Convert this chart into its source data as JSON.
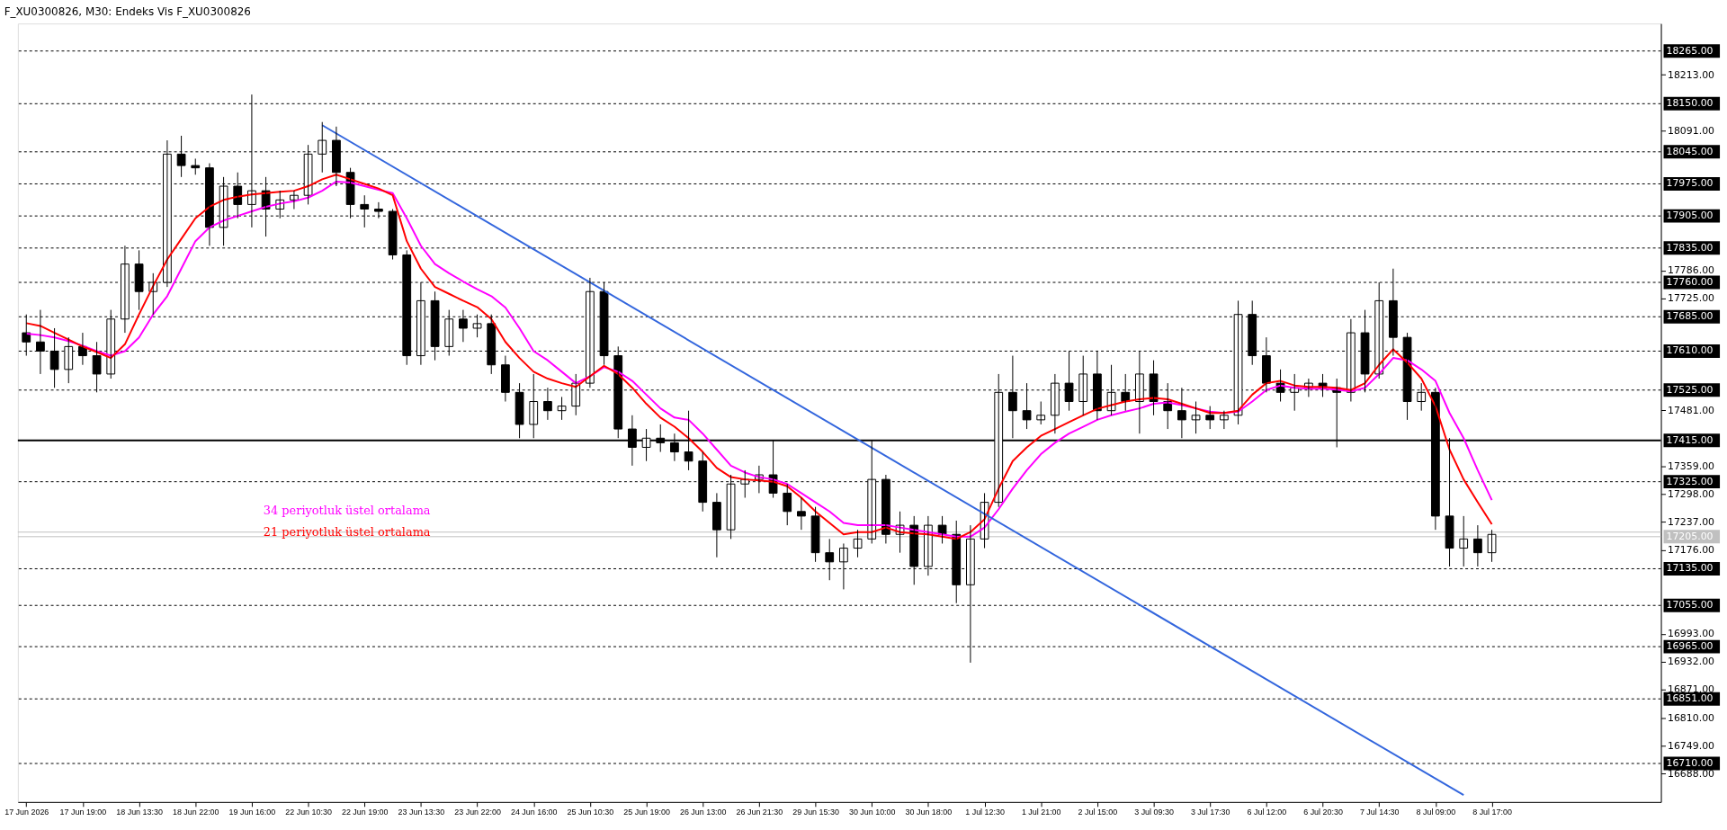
{
  "chart_data": {
    "type": "candlestick",
    "title": "F_XU0300826, M30:  Endeks Vis F_XU0300826",
    "categories": [
      "17 Jun 2026",
      null,
      null,
      null,
      "17 Jun 19:00",
      null,
      null,
      null,
      "18 Jun 13:30",
      null,
      null,
      null,
      "18 Jun 22:00",
      null,
      null,
      null,
      "19 Jun 16:00",
      null,
      null,
      null,
      "22 Jun 10:30",
      null,
      null,
      null,
      "22 Jun 19:00",
      null,
      null,
      null,
      "23 Jun 13:30",
      null,
      null,
      null,
      "23 Jun 22:00",
      null,
      null,
      null,
      "24 Jun 16:00",
      null,
      null,
      null,
      "25 Jun 10:30",
      null,
      null,
      null,
      "25 Jun 19:00",
      null,
      null,
      null,
      "26 Jun 13:00",
      null,
      null,
      null,
      "26 Jun 21:30",
      null,
      null,
      null,
      "29 Jun 15:30",
      null,
      null,
      null,
      "30 Jun 10:00",
      null,
      null,
      null,
      "30 Jun 18:00",
      null,
      null,
      null,
      "1 Jul 12:30",
      null,
      null,
      null,
      "1 Jul 21:00",
      null,
      null,
      null,
      "2 Jul 15:00",
      null,
      null,
      null,
      "3 Jul 09:30",
      null,
      null,
      null,
      "3 Jul 17:30",
      null,
      null,
      null,
      "6 Jul 12:00",
      null,
      null,
      null,
      "6 Jul 20:30",
      null,
      null,
      null,
      "7 Jul 14:30",
      null,
      null,
      null,
      "8 Jul 09:00",
      null,
      null,
      null,
      "8 Jul 17:00"
    ],
    "ohlc": [
      [
        17650,
        17690,
        17600,
        17630
      ],
      [
        17630,
        17700,
        17560,
        17610
      ],
      [
        17610,
        17660,
        17530,
        17570
      ],
      [
        17570,
        17640,
        17540,
        17620
      ],
      [
        17620,
        17650,
        17580,
        17600
      ],
      [
        17600,
        17630,
        17520,
        17560
      ],
      [
        17560,
        17700,
        17550,
        17680
      ],
      [
        17680,
        17840,
        17650,
        17800
      ],
      [
        17800,
        17830,
        17700,
        17740
      ],
      [
        17740,
        17780,
        17690,
        17760
      ],
      [
        17760,
        18070,
        17750,
        18040
      ],
      [
        18040,
        18080,
        17990,
        18015
      ],
      [
        18015,
        18030,
        17995,
        18010
      ],
      [
        18010,
        18020,
        17840,
        17880
      ],
      [
        17880,
        17990,
        17840,
        17970
      ],
      [
        17970,
        18000,
        17900,
        17930
      ],
      [
        17930,
        18170,
        17880,
        17960
      ],
      [
        17960,
        17990,
        17860,
        17920
      ],
      [
        17920,
        17960,
        17900,
        17940
      ],
      [
        17940,
        17960,
        17920,
        17950
      ],
      [
        17950,
        18060,
        17930,
        18040
      ],
      [
        18040,
        18110,
        18000,
        18070
      ],
      [
        18070,
        18100,
        17970,
        18000
      ],
      [
        18000,
        18010,
        17900,
        17930
      ],
      [
        17930,
        17950,
        17880,
        17920
      ],
      [
        17920,
        17935,
        17900,
        17915
      ],
      [
        17915,
        17920,
        17810,
        17820
      ],
      [
        17820,
        17830,
        17580,
        17600
      ],
      [
        17600,
        17760,
        17580,
        17720
      ],
      [
        17720,
        17740,
        17590,
        17620
      ],
      [
        17620,
        17700,
        17600,
        17680
      ],
      [
        17680,
        17700,
        17630,
        17660
      ],
      [
        17660,
        17690,
        17640,
        17670
      ],
      [
        17670,
        17690,
        17560,
        17580
      ],
      [
        17580,
        17600,
        17500,
        17520
      ],
      [
        17520,
        17540,
        17420,
        17450
      ],
      [
        17450,
        17560,
        17420,
        17500
      ],
      [
        17500,
        17530,
        17460,
        17480
      ],
      [
        17480,
        17510,
        17460,
        17490
      ],
      [
        17490,
        17560,
        17470,
        17540
      ],
      [
        17540,
        17770,
        17530,
        17740
      ],
      [
        17740,
        17760,
        17580,
        17600
      ],
      [
        17600,
        17620,
        17420,
        17440
      ],
      [
        17440,
        17470,
        17360,
        17400
      ],
      [
        17400,
        17440,
        17370,
        17420
      ],
      [
        17420,
        17450,
        17390,
        17410
      ],
      [
        17410,
        17430,
        17370,
        17390
      ],
      [
        17390,
        17480,
        17350,
        17370
      ],
      [
        17370,
        17390,
        17260,
        17280
      ],
      [
        17280,
        17300,
        17160,
        17220
      ],
      [
        17220,
        17340,
        17200,
        17320
      ],
      [
        17320,
        17350,
        17290,
        17330
      ],
      [
        17330,
        17360,
        17300,
        17340
      ],
      [
        17340,
        17415,
        17290,
        17300
      ],
      [
        17300,
        17320,
        17230,
        17260
      ],
      [
        17260,
        17290,
        17220,
        17250
      ],
      [
        17250,
        17270,
        17150,
        17170
      ],
      [
        17170,
        17200,
        17110,
        17150
      ],
      [
        17150,
        17190,
        17090,
        17180
      ],
      [
        17180,
        17220,
        17160,
        17200
      ],
      [
        17200,
        17415,
        17190,
        17330
      ],
      [
        17330,
        17340,
        17190,
        17210
      ],
      [
        17210,
        17260,
        17170,
        17230
      ],
      [
        17230,
        17250,
        17100,
        17140
      ],
      [
        17140,
        17250,
        17120,
        17230
      ],
      [
        17230,
        17250,
        17190,
        17210
      ],
      [
        17210,
        17240,
        17060,
        17100
      ],
      [
        17100,
        17230,
        16930,
        17200
      ],
      [
        17200,
        17300,
        17180,
        17280
      ],
      [
        17280,
        17560,
        17270,
        17520
      ],
      [
        17520,
        17600,
        17420,
        17480
      ],
      [
        17480,
        17540,
        17440,
        17460
      ],
      [
        17460,
        17500,
        17450,
        17470
      ],
      [
        17470,
        17560,
        17430,
        17540
      ],
      [
        17540,
        17610,
        17480,
        17500
      ],
      [
        17500,
        17600,
        17470,
        17560
      ],
      [
        17560,
        17610,
        17460,
        17480
      ],
      [
        17480,
        17580,
        17470,
        17520
      ],
      [
        17520,
        17560,
        17480,
        17500
      ],
      [
        17500,
        17610,
        17430,
        17560
      ],
      [
        17560,
        17590,
        17470,
        17500
      ],
      [
        17500,
        17540,
        17440,
        17480
      ],
      [
        17480,
        17530,
        17420,
        17460
      ],
      [
        17460,
        17500,
        17430,
        17470
      ],
      [
        17470,
        17490,
        17440,
        17460
      ],
      [
        17460,
        17480,
        17440,
        17470
      ],
      [
        17470,
        17720,
        17450,
        17690
      ],
      [
        17690,
        17720,
        17580,
        17600
      ],
      [
        17600,
        17640,
        17520,
        17540
      ],
      [
        17540,
        17570,
        17500,
        17520
      ],
      [
        17520,
        17560,
        17480,
        17530
      ],
      [
        17530,
        17550,
        17510,
        17540
      ],
      [
        17540,
        17560,
        17510,
        17530
      ],
      [
        17530,
        17550,
        17400,
        17520
      ],
      [
        17520,
        17680,
        17500,
        17650
      ],
      [
        17650,
        17700,
        17520,
        17560
      ],
      [
        17560,
        17760,
        17550,
        17720
      ],
      [
        17720,
        17790,
        17600,
        17640
      ],
      [
        17640,
        17650,
        17460,
        17500
      ],
      [
        17500,
        17540,
        17480,
        17520
      ],
      [
        17520,
        17530,
        17220,
        17250
      ],
      [
        17250,
        17420,
        17140,
        17180
      ],
      [
        17180,
        17250,
        17140,
        17200
      ],
      [
        17200,
        17230,
        17140,
        17170
      ],
      [
        17170,
        17220,
        17150,
        17210
      ]
    ],
    "series": [
      {
        "name": "34 periyotluk üstel ortalama",
        "type": "line",
        "color": "#ff00ff",
        "values": [
          17648,
          17645,
          17640,
          17632,
          17622,
          17610,
          17600,
          17610,
          17640,
          17690,
          17730,
          17790,
          17850,
          17880,
          17895,
          17905,
          17915,
          17925,
          17932,
          17937,
          17945,
          17960,
          17980,
          17978,
          17970,
          17962,
          17955,
          17900,
          17840,
          17800,
          17780,
          17762,
          17745,
          17730,
          17705,
          17660,
          17610,
          17590,
          17565,
          17540,
          17555,
          17575,
          17565,
          17545,
          17515,
          17485,
          17465,
          17460,
          17430,
          17395,
          17360,
          17345,
          17335,
          17330,
          17320,
          17300,
          17280,
          17260,
          17235,
          17230,
          17230,
          17230,
          17225,
          17220,
          17215,
          17210,
          17205,
          17205,
          17225,
          17265,
          17310,
          17350,
          17385,
          17410,
          17430,
          17445,
          17460,
          17470,
          17478,
          17485,
          17495,
          17498,
          17492,
          17485,
          17478,
          17475,
          17478,
          17500,
          17525,
          17535,
          17530,
          17528,
          17528,
          17526,
          17522,
          17530,
          17560,
          17595,
          17590,
          17570,
          17545,
          17475,
          17420,
          17350,
          17285
        ]
      },
      {
        "name": "21 periyotluk üstel ortalama",
        "type": "line",
        "color": "#ff0000",
        "values": [
          17671,
          17665,
          17650,
          17635,
          17620,
          17608,
          17595,
          17625,
          17690,
          17752,
          17810,
          17855,
          17900,
          17925,
          17940,
          17947,
          17952,
          17955,
          17958,
          17960,
          17970,
          17985,
          17995,
          17985,
          17975,
          17965,
          17950,
          17850,
          17790,
          17750,
          17735,
          17720,
          17706,
          17680,
          17630,
          17595,
          17565,
          17550,
          17540,
          17532,
          17555,
          17578,
          17560,
          17530,
          17495,
          17465,
          17445,
          17420,
          17390,
          17355,
          17335,
          17330,
          17328,
          17325,
          17315,
          17290,
          17260,
          17235,
          17210,
          17215,
          17215,
          17225,
          17215,
          17212,
          17210,
          17205,
          17200,
          17215,
          17243,
          17310,
          17370,
          17400,
          17425,
          17440,
          17455,
          17470,
          17484,
          17492,
          17500,
          17505,
          17508,
          17505,
          17495,
          17485,
          17475,
          17475,
          17480,
          17515,
          17540,
          17545,
          17535,
          17532,
          17532,
          17530,
          17525,
          17540,
          17580,
          17614,
          17585,
          17550,
          17490,
          17395,
          17330,
          17280,
          17232
        ]
      },
      {
        "type": "line",
        "color": "#3366dd",
        "values": [
          null,
          null,
          null,
          null,
          null,
          null,
          null,
          null,
          null,
          null,
          null,
          null,
          null,
          null,
          null,
          null,
          null,
          null,
          null,
          null,
          null,
          18103,
          null,
          null,
          null,
          null,
          null,
          null,
          null,
          null,
          null,
          null,
          null,
          null,
          null,
          null,
          null,
          null,
          null,
          null,
          null,
          null,
          null,
          null,
          null,
          null,
          null,
          null,
          null,
          null,
          null,
          null,
          null,
          null,
          null,
          null,
          null,
          null,
          null,
          null,
          null,
          null,
          null,
          null,
          null,
          null,
          null,
          null,
          null,
          null,
          null,
          null,
          null,
          null,
          null,
          null,
          null,
          null,
          null,
          null,
          null,
          null,
          null,
          null,
          null,
          null,
          null,
          null,
          null,
          null,
          null,
          null,
          null,
          null,
          null,
          null,
          null,
          null,
          null,
          null,
          null,
          null,
          16641,
          null,
          null
        ]
      }
    ],
    "ylim": [
      16626,
      18325
    ],
    "yticks": [
      {
        "value": 18213,
        "label": "18213.00"
      },
      {
        "value": 18091,
        "label": "18091.00"
      },
      {
        "value": 17786,
        "label": "17786.00"
      },
      {
        "value": 17725,
        "label": "17725.00"
      },
      {
        "value": 17481,
        "label": "17481.00"
      },
      {
        "value": 17359,
        "label": "17359.00"
      },
      {
        "value": 17298,
        "label": "17298.00"
      },
      {
        "value": 17237,
        "label": "17237.00"
      },
      {
        "value": 17176,
        "label": "17176.00"
      },
      {
        "value": 16993,
        "label": "16993.00"
      },
      {
        "value": 16932,
        "label": "16932.00"
      },
      {
        "value": 16871,
        "label": "16871.00"
      },
      {
        "value": 16810,
        "label": "16810.00"
      },
      {
        "value": 16749,
        "label": "16749.00"
      },
      {
        "value": 16688,
        "label": "16688.00"
      }
    ],
    "ref_lines": [
      {
        "axis": "y",
        "value": 18265,
        "label": "18265.00",
        "color": "#000000",
        "line_style": "dashed"
      },
      {
        "axis": "y",
        "value": 18150,
        "label": "18150.00",
        "color": "#000000",
        "line_style": "dashed"
      },
      {
        "axis": "y",
        "value": 18045,
        "label": "18045.00",
        "color": "#000000",
        "line_style": "dashed"
      },
      {
        "axis": "y",
        "value": 17975,
        "label": "17975.00",
        "color": "#000000",
        "line_style": "dashed"
      },
      {
        "axis": "y",
        "value": 17905,
        "label": "17905.00",
        "color": "#000000",
        "line_style": "dashed"
      },
      {
        "axis": "y",
        "value": 17835,
        "label": "17835.00",
        "color": "#000000",
        "line_style": "dashed"
      },
      {
        "axis": "y",
        "value": 17760,
        "label": "17760.00",
        "color": "#000000",
        "line_style": "dashed"
      },
      {
        "axis": "y",
        "value": 17685,
        "label": "17685.00",
        "color": "#000000",
        "line_style": "dashed"
      },
      {
        "axis": "y",
        "value": 17610,
        "label": "17610.00",
        "color": "#000000",
        "line_style": "dashed"
      },
      {
        "axis": "y",
        "value": 17525,
        "label": "17525.00",
        "color": "#000000",
        "line_style": "dashed"
      },
      {
        "axis": "y",
        "value": 17415,
        "label": "17415.00",
        "color": "#000000",
        "line_style": "solid"
      },
      {
        "axis": "y",
        "value": 17325,
        "label": "17325.00",
        "color": "#000000",
        "line_style": "dashed"
      },
      {
        "axis": "y",
        "value": 17215,
        "label": null,
        "color": "#c0c0c0",
        "line_style": "solid"
      },
      {
        "axis": "y",
        "value": 17205,
        "label": "17205.00",
        "color": "#c0c0c0",
        "line_style": "solid"
      },
      {
        "axis": "y",
        "value": 17135,
        "label": "17135.00",
        "color": "#000000",
        "line_style": "dashed"
      },
      {
        "axis": "y",
        "value": 17055,
        "label": "17055.00",
        "color": "#000000",
        "line_style": "dashed"
      },
      {
        "axis": "y",
        "value": 16965,
        "label": "16965.00",
        "color": "#000000",
        "line_style": "dashed"
      },
      {
        "axis": "y",
        "value": 16851,
        "label": "16851.00",
        "color": "#000000",
        "line_style": "dashed"
      },
      {
        "axis": "y",
        "value": 16710,
        "label": "16710.00",
        "color": "#000000",
        "line_style": "dashed"
      }
    ],
    "grid": false
  }
}
